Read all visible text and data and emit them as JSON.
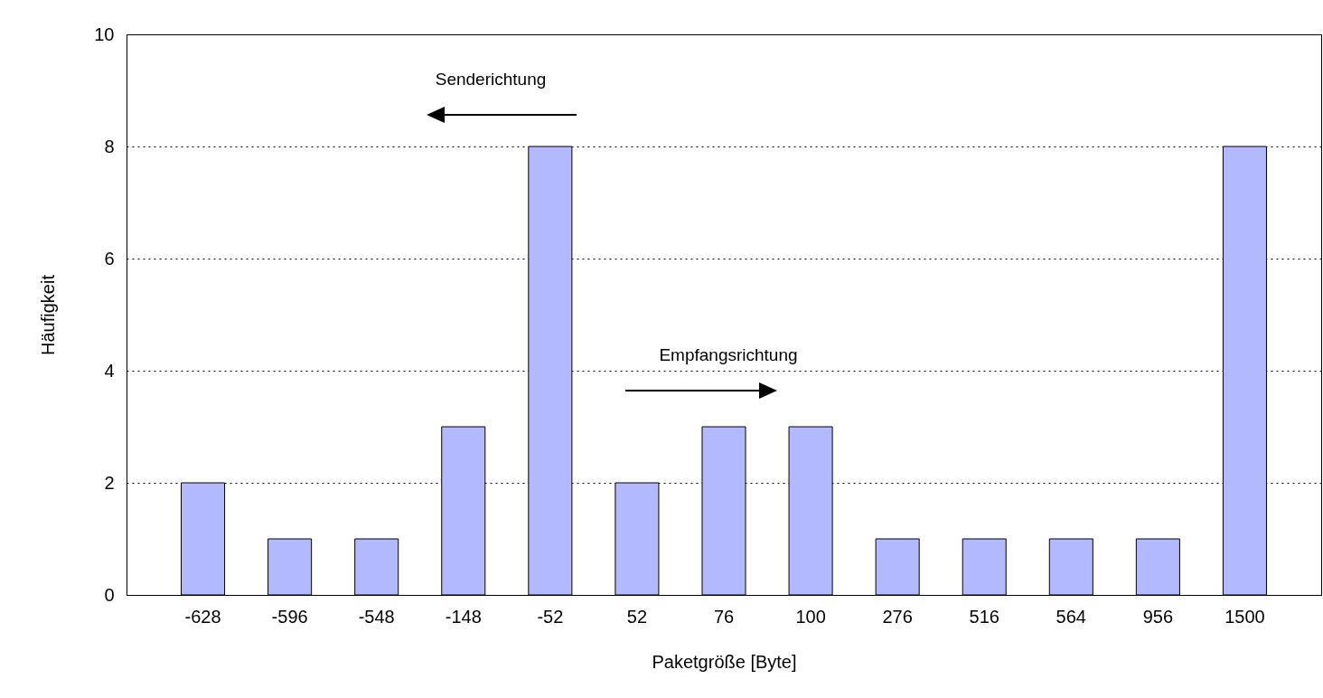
{
  "chart_data": {
    "type": "bar",
    "xlabel": "Paketgröße [Byte]",
    "ylabel": "Häufigkeit",
    "categories": [
      "-628",
      "-596",
      "-548",
      "-148",
      "-52",
      "52",
      "76",
      "100",
      "276",
      "516",
      "564",
      "956",
      "1500"
    ],
    "values": [
      2,
      1,
      1,
      3,
      8,
      2,
      3,
      3,
      1,
      1,
      1,
      1,
      8
    ],
    "color": "#b3b9ff",
    "ylim": [
      0,
      10
    ],
    "yticks": [
      0,
      2,
      4,
      6,
      8,
      10
    ],
    "grid": "y",
    "line_style": "dotted",
    "annotations": [
      "Senderichtung",
      "Empfangsrichtung"
    ]
  }
}
